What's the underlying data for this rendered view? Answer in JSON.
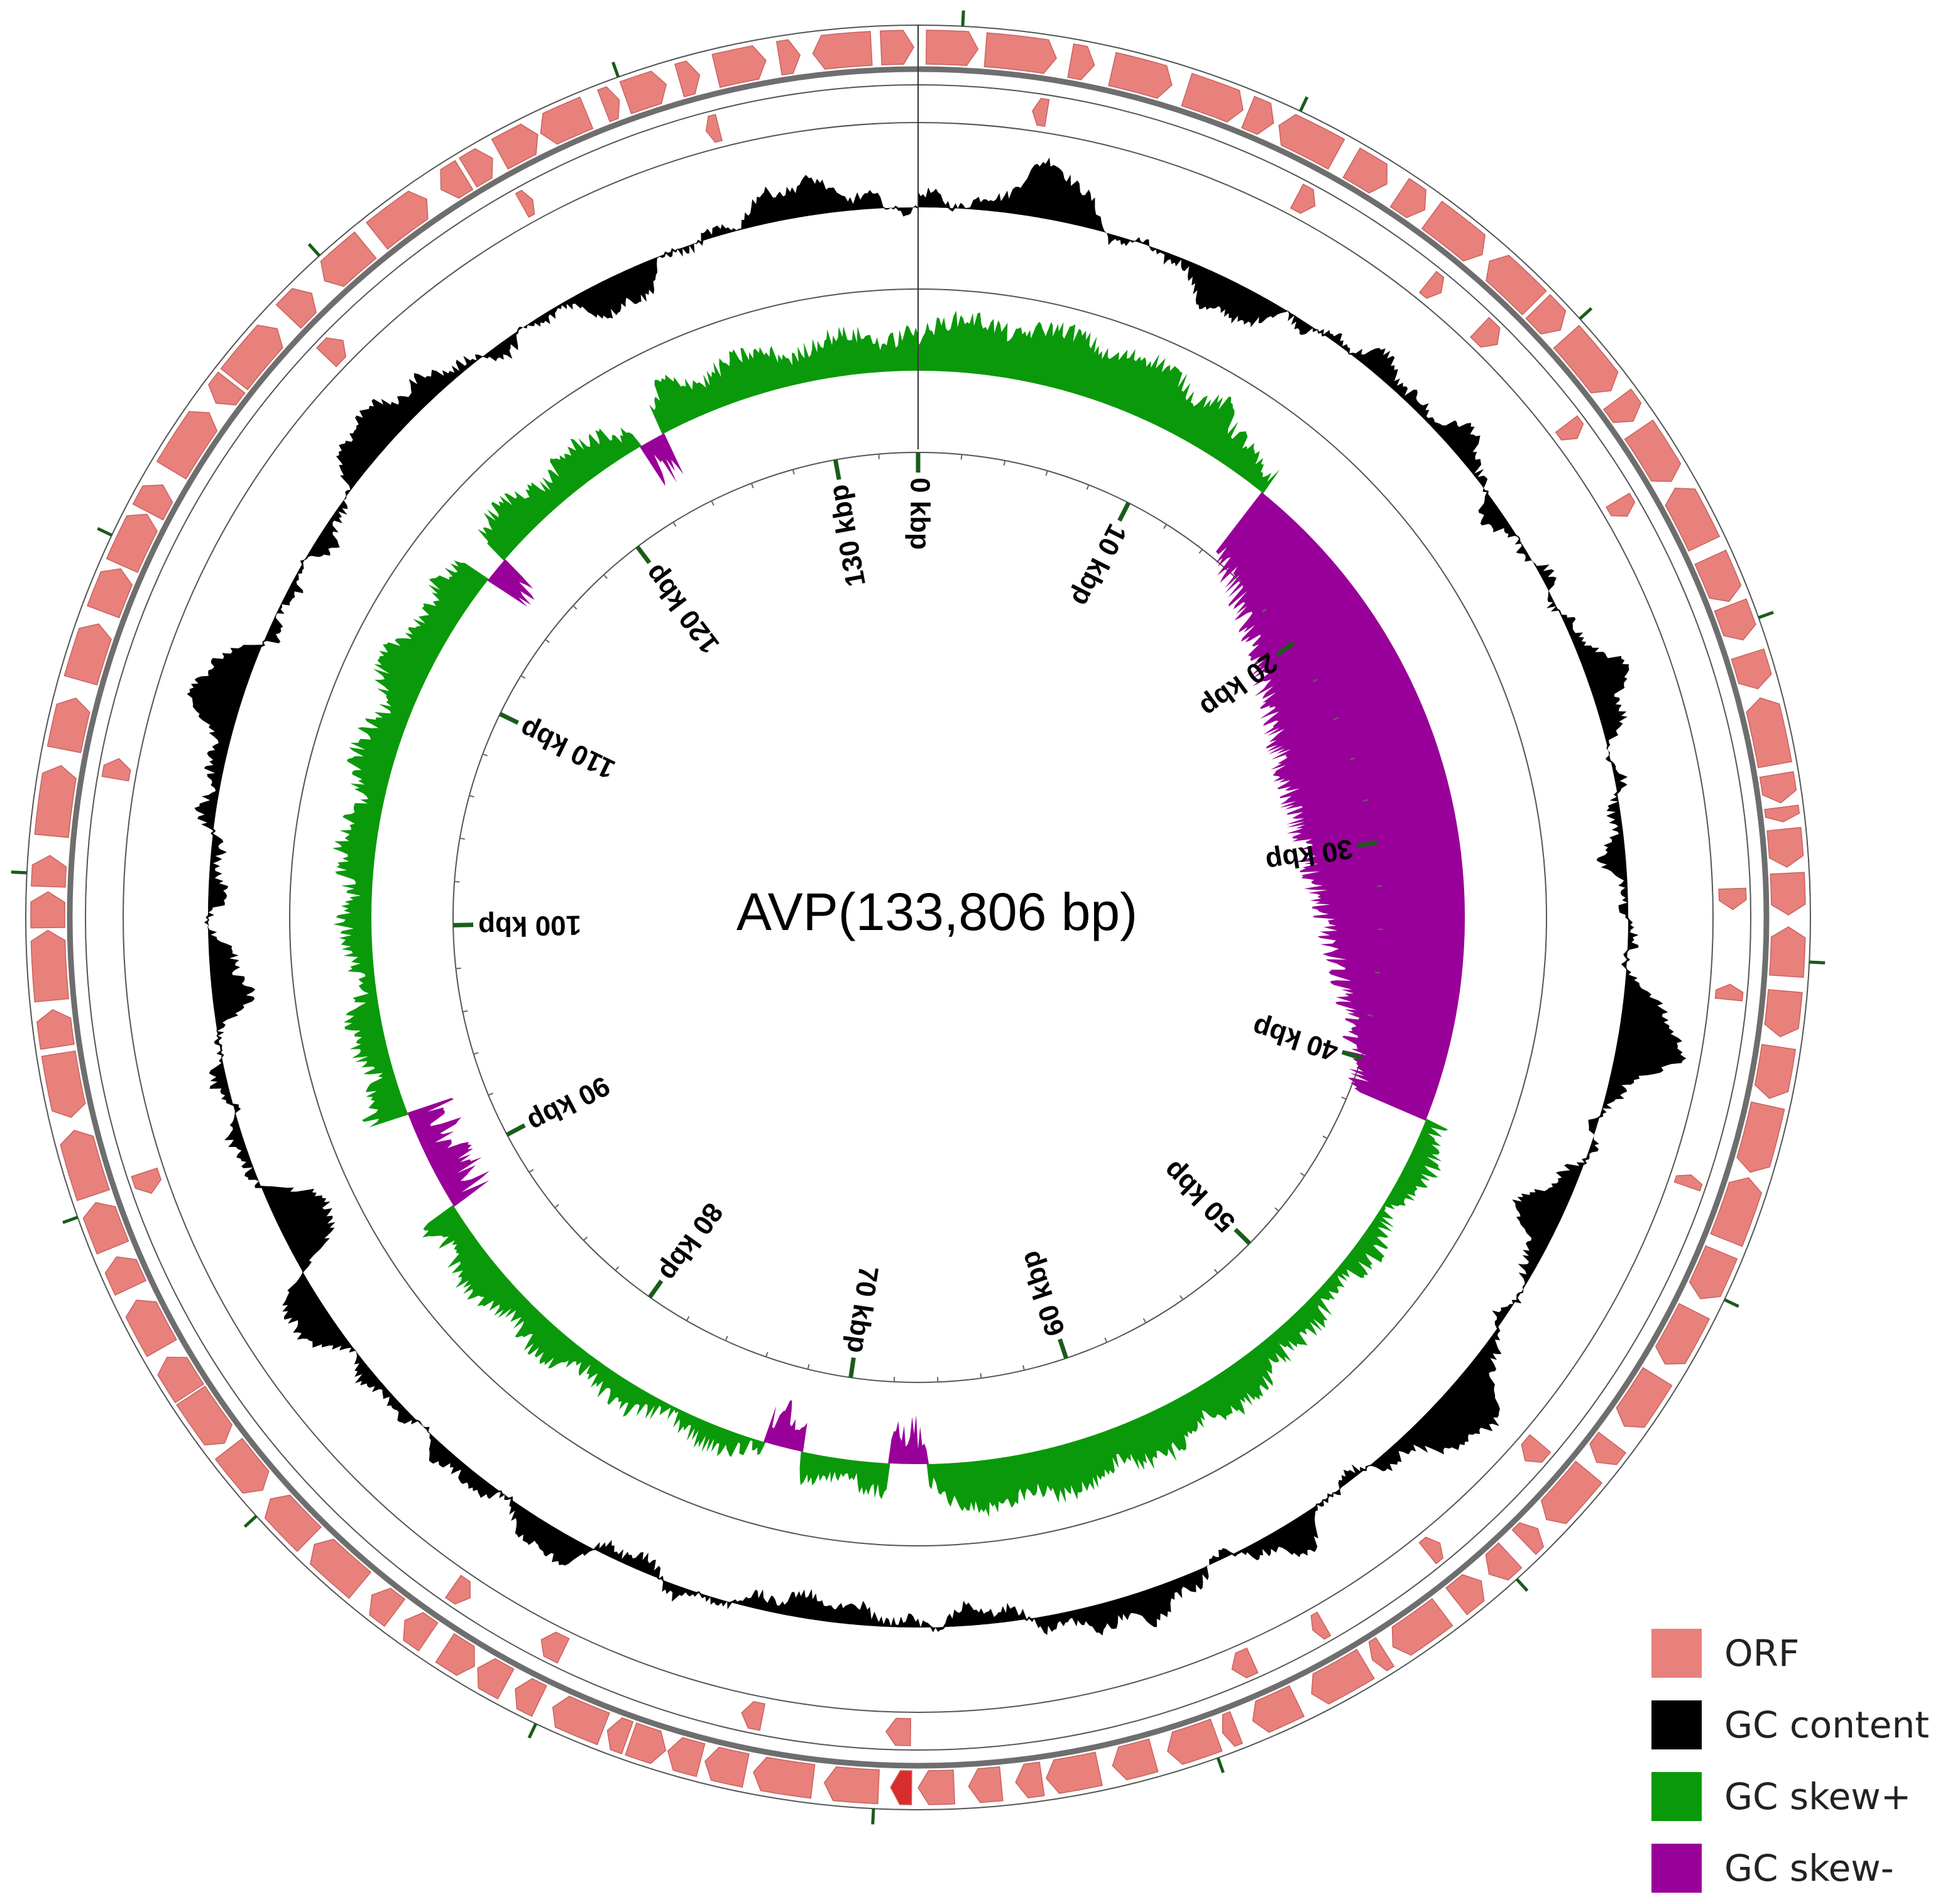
{
  "title": "AVP(133,806 bp)",
  "genome_length": 133806,
  "colors": {
    "orf": "#e8807c",
    "orf_highlight": "#d92d2d",
    "gc_content": "#000000",
    "gc_skew_pos": "#0a990a",
    "gc_skew_neg": "#990099",
    "tick_green": "#1a5c1a",
    "backbone": "#6e6e6e"
  },
  "tick_labels": [
    "0 kbp",
    "10 kbp",
    "20 kbp",
    "30 kbp",
    "40 kbp",
    "50 kbp",
    "60 kbp",
    "70 kbp",
    "80 kbp",
    "90 kbp",
    "100 kbp",
    "110 kbp",
    "120 kbp",
    "130 kbp"
  ],
  "tick_positions_kbp": [
    0,
    10,
    20,
    30,
    40,
    50,
    60,
    70,
    80,
    90,
    100,
    110,
    120,
    130
  ],
  "legend": [
    {
      "label": "ORF",
      "color_key": "orf"
    },
    {
      "label": "GC content",
      "color_key": "gc_content"
    },
    {
      "label": "GC skew+",
      "color_key": "gc_skew_pos"
    },
    {
      "label": "GC skew-",
      "color_key": "gc_skew_neg"
    }
  ],
  "chart_data": {
    "type": "circular-genome-map",
    "title": "AVP(133,806 bp)",
    "genome_length_bp": 133806,
    "tracks": [
      "ORF (forward strand)",
      "ORF (reverse strand)",
      "GC content",
      "GC skew"
    ],
    "gc_skew_negative_regions_kbp": [
      [
        14.5,
        41.5
      ],
      [
        88.5,
        92.5
      ],
      [
        114.5,
        115.5
      ],
      [
        122.5,
        123.5
      ],
      [
        66.5,
        68.0
      ],
      [
        71.5,
        73.0
      ]
    ],
    "gc_skew_positive_regions_kbp": [
      [
        0,
        13.8
      ],
      [
        41.5,
        88.5
      ],
      [
        92.5,
        133.806
      ]
    ],
    "orf_count_forward": 135,
    "orf_count_reverse": 22
  }
}
